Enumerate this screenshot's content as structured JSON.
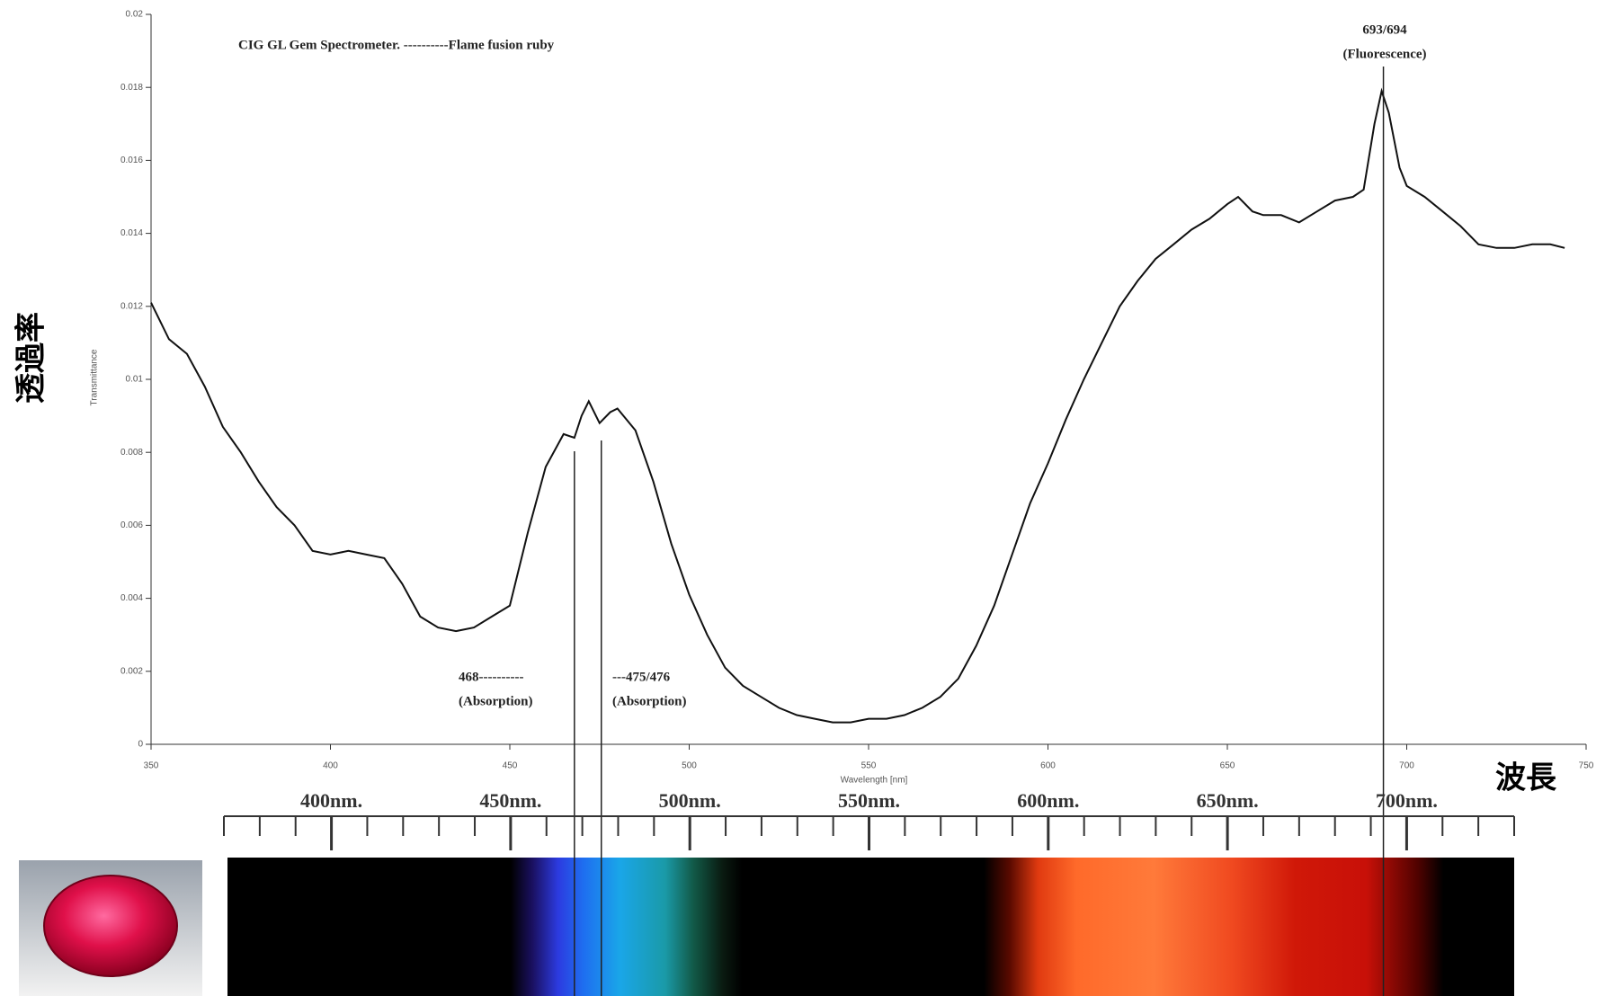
{
  "chart_data": {
    "type": "line",
    "title": "CIG GL Gem Spectrometer. ----------Flame fusion ruby",
    "x_label": "Wavelength [nm]",
    "y_label": "Transmittance",
    "side_labels": {
      "y": "透過率",
      "x": "波長"
    },
    "color": "#111111",
    "x": [
      350,
      355,
      360,
      365,
      370,
      375,
      380,
      385,
      390,
      395,
      400,
      405,
      410,
      415,
      420,
      425,
      430,
      435,
      440,
      445,
      450,
      455,
      460,
      465,
      468,
      470,
      472,
      475,
      478,
      480,
      485,
      490,
      495,
      500,
      505,
      510,
      515,
      520,
      525,
      530,
      535,
      540,
      545,
      550,
      555,
      560,
      565,
      570,
      575,
      580,
      585,
      590,
      595,
      600,
      605,
      610,
      615,
      620,
      625,
      630,
      635,
      640,
      645,
      650,
      653,
      657,
      660,
      665,
      670,
      675,
      680,
      685,
      688,
      691,
      693,
      695,
      698,
      700,
      705,
      710,
      715,
      720,
      725,
      730,
      735,
      740,
      744
    ],
    "values": [
      0.0121,
      0.0111,
      0.0107,
      0.0098,
      0.0087,
      0.008,
      0.0072,
      0.0065,
      0.006,
      0.0053,
      0.0052,
      0.0053,
      0.0052,
      0.0051,
      0.0044,
      0.0035,
      0.0032,
      0.0031,
      0.0032,
      0.0035,
      0.0038,
      0.0058,
      0.0076,
      0.0085,
      0.0084,
      0.009,
      0.0094,
      0.0088,
      0.0091,
      0.0092,
      0.0086,
      0.0072,
      0.0055,
      0.0041,
      0.003,
      0.0021,
      0.0016,
      0.0013,
      0.001,
      0.0008,
      0.0007,
      0.0006,
      0.0006,
      0.0007,
      0.0007,
      0.0008,
      0.001,
      0.0013,
      0.0018,
      0.0027,
      0.0038,
      0.0052,
      0.0066,
      0.0077,
      0.0089,
      0.01,
      0.011,
      0.012,
      0.0127,
      0.0133,
      0.0137,
      0.0141,
      0.0144,
      0.0148,
      0.015,
      0.0146,
      0.0145,
      0.0145,
      0.0143,
      0.0146,
      0.0149,
      0.015,
      0.0152,
      0.017,
      0.0179,
      0.0173,
      0.0158,
      0.0153,
      0.015,
      0.0146,
      0.0142,
      0.0137,
      0.0136,
      0.0136,
      0.0137,
      0.0137,
      0.0136
    ],
    "xlim": [
      350,
      750
    ],
    "xticks": [
      350,
      400,
      450,
      500,
      550,
      600,
      650,
      700,
      750
    ],
    "ylim": [
      0,
      0.02
    ],
    "yticks": [
      0,
      0.002,
      0.004,
      0.006,
      0.008,
      0.01,
      0.012,
      0.014,
      0.016,
      0.018,
      0.02
    ],
    "annotations": [
      {
        "x": 468,
        "lines": [
          "468----------",
          "(Absorption)"
        ]
      },
      {
        "x": 475.5,
        "lines": [
          "---475/476",
          "(Absorption)"
        ]
      },
      {
        "x": 693.5,
        "lines": [
          "693/694",
          "(Fluorescence)"
        ]
      }
    ],
    "spectrum": {
      "xlim": [
        370,
        730
      ],
      "xticks": [
        {
          "value": 400,
          "label": "400nm."
        },
        {
          "value": 450,
          "label": "450nm."
        },
        {
          "value": 500,
          "label": "500nm."
        },
        {
          "value": 550,
          "label": "550nm."
        },
        {
          "value": 600,
          "label": "600nm."
        },
        {
          "value": 650,
          "label": "650nm."
        },
        {
          "value": 700,
          "label": "700nm."
        }
      ],
      "minor_ticks": [
        370,
        380,
        390,
        400,
        410,
        420,
        430,
        440,
        450,
        460,
        470,
        480,
        490,
        500,
        510,
        520,
        530,
        540,
        550,
        560,
        570,
        580,
        590,
        600,
        610,
        620,
        630,
        640,
        650,
        660,
        670,
        680,
        690,
        700,
        710,
        720,
        730
      ]
    }
  }
}
